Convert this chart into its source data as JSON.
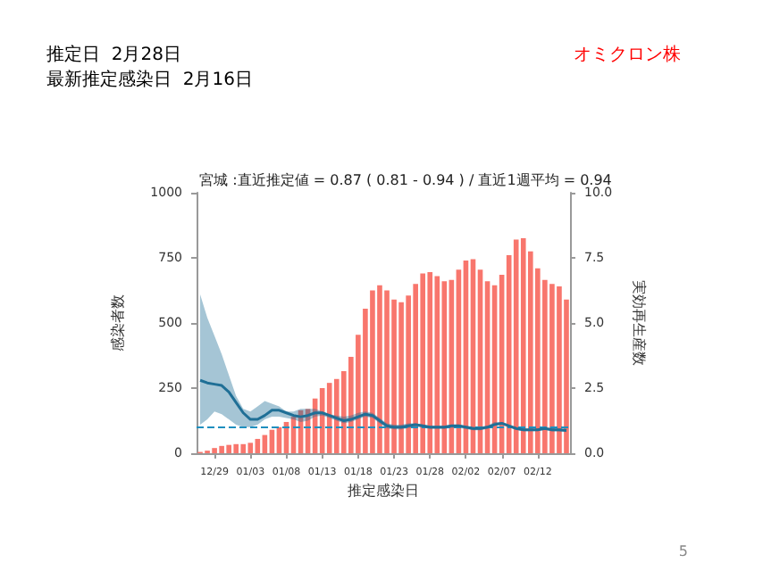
{
  "chart_data": {
    "type": "bar",
    "title": "宮城 :直近推定値 = 0.87 ( 0.81 - 0.94 ) / 直近1週平均 = 0.94",
    "annotations": [
      "推定日  2月28日",
      "最新推定感染日  2月16日",
      "オミクロン株",
      "5"
    ],
    "xlabel": "推定感染日",
    "ylabel": "感染者数",
    "y2label": "実効再生産数",
    "categories": [
      null,
      null,
      "12/29",
      null,
      null,
      null,
      null,
      "01/03",
      null,
      null,
      null,
      null,
      "01/08",
      null,
      null,
      null,
      null,
      "01/13",
      null,
      null,
      null,
      null,
      "01/18",
      null,
      null,
      null,
      null,
      "01/23",
      null,
      null,
      null,
      null,
      "01/28",
      null,
      null,
      null,
      null,
      "02/02",
      null,
      null,
      null,
      null,
      "02/07",
      null,
      null,
      null,
      null,
      "02/12",
      null,
      null,
      null,
      null
    ],
    "series": [
      {
        "color": "#f8766d",
        "values": [
          5,
          10,
          20,
          28,
          32,
          35,
          35,
          40,
          55,
          70,
          90,
          100,
          120,
          140,
          165,
          170,
          210,
          250,
          270,
          285,
          315,
          370,
          455,
          555,
          625,
          645,
          625,
          590,
          580,
          605,
          650,
          690,
          695,
          680,
          660,
          665,
          705,
          740,
          745,
          705,
          660,
          645,
          685,
          760,
          820,
          825,
          775,
          710,
          665,
          650,
          640,
          590
        ]
      },
      {
        "type": "line",
        "axis": "y2",
        "color": "#1f6f96",
        "values": [
          2.8,
          2.7,
          2.65,
          2.6,
          2.35,
          1.95,
          1.55,
          1.3,
          1.3,
          1.45,
          1.65,
          1.65,
          1.55,
          1.45,
          1.4,
          1.45,
          1.55,
          1.55,
          1.45,
          1.35,
          1.25,
          1.3,
          1.4,
          1.5,
          1.45,
          1.25,
          1.05,
          1.0,
          1.0,
          1.05,
          1.1,
          1.05,
          1.0,
          1.0,
          1.0,
          1.05,
          1.05,
          1.0,
          0.95,
          0.95,
          1.0,
          1.1,
          1.15,
          1.05,
          0.95,
          0.9,
          0.9,
          0.9,
          0.95,
          0.9,
          0.9,
          0.87
        ],
        "upper": [
          6.1,
          5.2,
          4.5,
          3.8,
          3.0,
          2.2,
          1.7,
          1.6,
          1.8,
          2.0,
          1.9,
          1.8,
          1.6,
          1.6,
          1.7,
          1.7,
          1.7,
          1.6,
          1.5,
          1.45,
          1.4,
          1.45,
          1.55,
          1.6,
          1.55,
          1.35,
          1.15,
          1.1,
          1.1,
          1.15,
          1.15,
          1.1,
          1.05,
          1.05,
          1.05,
          1.1,
          1.1,
          1.05,
          1.0,
          1.0,
          1.05,
          1.2,
          1.2,
          1.1,
          1.0,
          0.95,
          0.95,
          0.95,
          1.0,
          0.97,
          0.96,
          0.94
        ],
        "lower": [
          1.1,
          1.3,
          1.6,
          1.5,
          1.3,
          1.1,
          1.0,
          1.0,
          1.1,
          1.3,
          1.4,
          1.4,
          1.35,
          1.3,
          1.2,
          1.25,
          1.4,
          1.45,
          1.35,
          1.25,
          1.15,
          1.2,
          1.3,
          1.4,
          1.35,
          1.15,
          0.95,
          0.92,
          0.92,
          0.97,
          1.02,
          0.98,
          0.93,
          0.93,
          0.93,
          0.98,
          0.98,
          0.93,
          0.88,
          0.88,
          0.93,
          1.05,
          1.1,
          1.0,
          0.9,
          0.85,
          0.85,
          0.85,
          0.9,
          0.84,
          0.84,
          0.81
        ]
      }
    ],
    "ylim": [
      0,
      1000
    ],
    "yticks": [
      0,
      250,
      500,
      750,
      1000
    ],
    "y2lim": [
      0,
      10
    ],
    "y2ticks": [
      {
        "value": 0,
        "label": "0.0"
      },
      {
        "value": 2.5,
        "label": "2.5"
      },
      {
        "value": 5,
        "label": "5.0"
      },
      {
        "value": 7.5,
        "label": "7.5"
      },
      {
        "value": 10,
        "label": "10.0"
      }
    ],
    "ref_lines": [
      {
        "axis": "y2",
        "value": 1,
        "color": "#1f8fbf",
        "line_style": "dashed"
      }
    ],
    "grid": false,
    "marker": "none"
  }
}
